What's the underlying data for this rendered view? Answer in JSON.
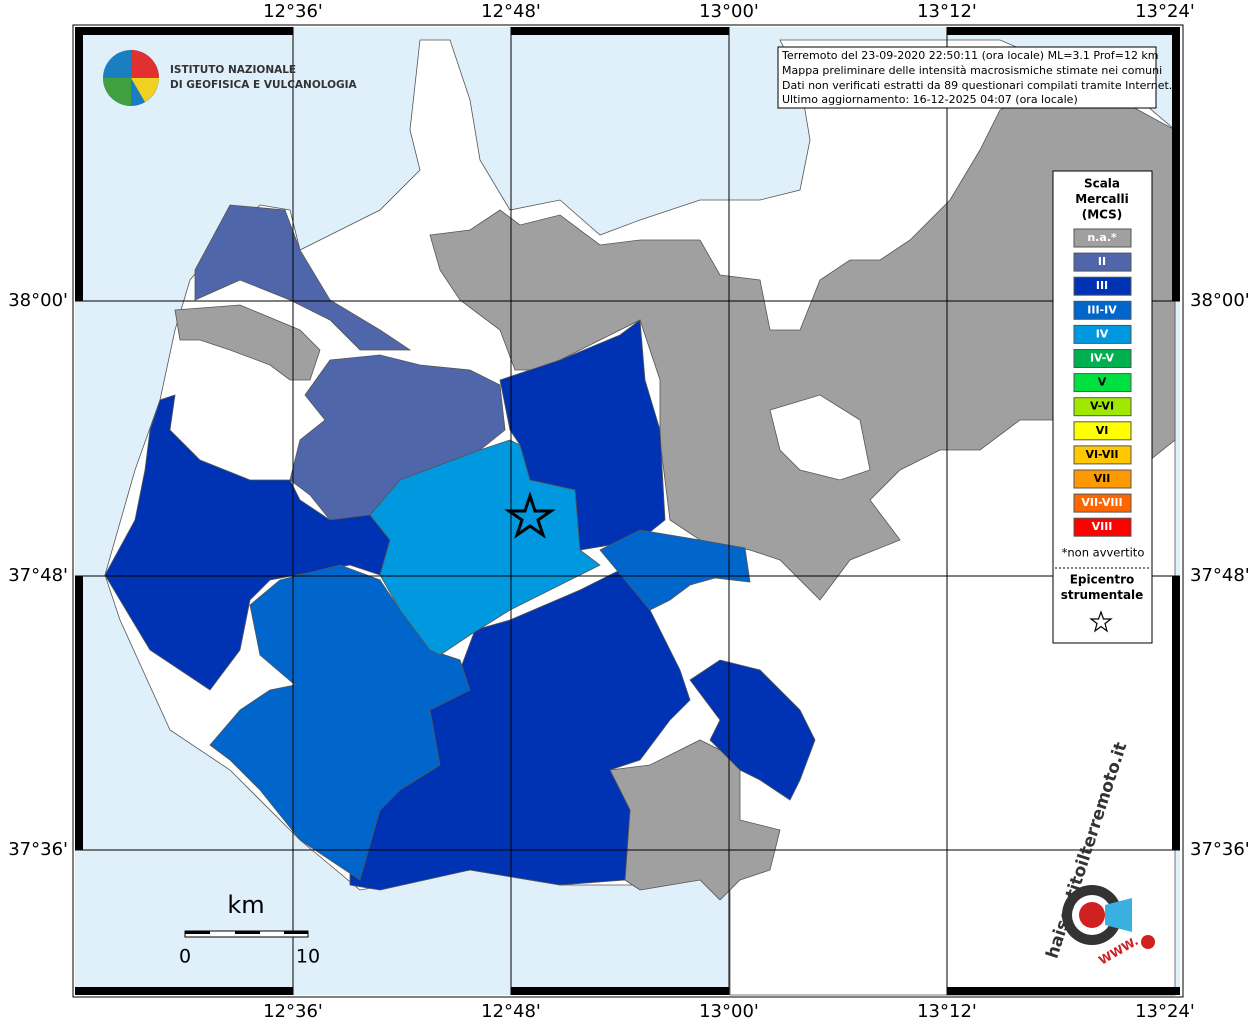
{
  "logo": {
    "line1": "ISTITUTO NAZIONALE",
    "line2": "DI GEOFISICA E VULCANOLOGIA"
  },
  "info": [
    "Terremoto del 23-09-2020 22:50:11 (ora locale) ML=3.1 Prof=12 km",
    "Mappa preliminare delle intensità macrosismiche stimate nei comuni",
    "Dati non verificati estratti da 89 questionari compilati tramite Internet.",
    "Ultimo aggiornamento: 16-12-2025 04:07 (ora locale)"
  ],
  "graticule": {
    "lon": [
      "12°36'",
      "12°48'",
      "13°00'",
      "13°12'",
      "13°24'"
    ],
    "lat": [
      "38°00'",
      "37°48'",
      "37°36'"
    ]
  },
  "legend": {
    "title": [
      "Scala",
      "Mercalli",
      "(MCS)"
    ],
    "items": [
      {
        "label": "n.a.*",
        "color": "#a0a0a0",
        "text_color": "#ffffff"
      },
      {
        "label": "II",
        "color": "#4f66aa",
        "text_color": "#ffffff"
      },
      {
        "label": "III",
        "color": "#0033b3",
        "text_color": "#ffffff"
      },
      {
        "label": "III-IV",
        "color": "#0066cc",
        "text_color": "#ffffff"
      },
      {
        "label": "IV",
        "color": "#0099e0",
        "text_color": "#ffffff"
      },
      {
        "label": "IV-V",
        "color": "#00b050",
        "text_color": "#ffffff"
      },
      {
        "label": "V",
        "color": "#00e040",
        "text_color": "#000000"
      },
      {
        "label": "V-VI",
        "color": "#a0e800",
        "text_color": "#000000"
      },
      {
        "label": "VI",
        "color": "#ffff00",
        "text_color": "#000000"
      },
      {
        "label": "VI-VII",
        "color": "#ffc800",
        "text_color": "#000000"
      },
      {
        "label": "VII",
        "color": "#ff9900",
        "text_color": "#000000"
      },
      {
        "label": "VII-VIII",
        "color": "#ff6600",
        "text_color": "#ffffff"
      },
      {
        "label": "VIII",
        "color": "#ff0000",
        "text_color": "#ffffff"
      }
    ],
    "note": "*non avvertito",
    "epicenter": [
      "Epicentro",
      "strumentale"
    ]
  },
  "scale_bar": {
    "unit": "km",
    "start": 0,
    "end": 10
  },
  "badge": {
    "text": "haisentitoilterremoto.it",
    "www": "WWW."
  }
}
